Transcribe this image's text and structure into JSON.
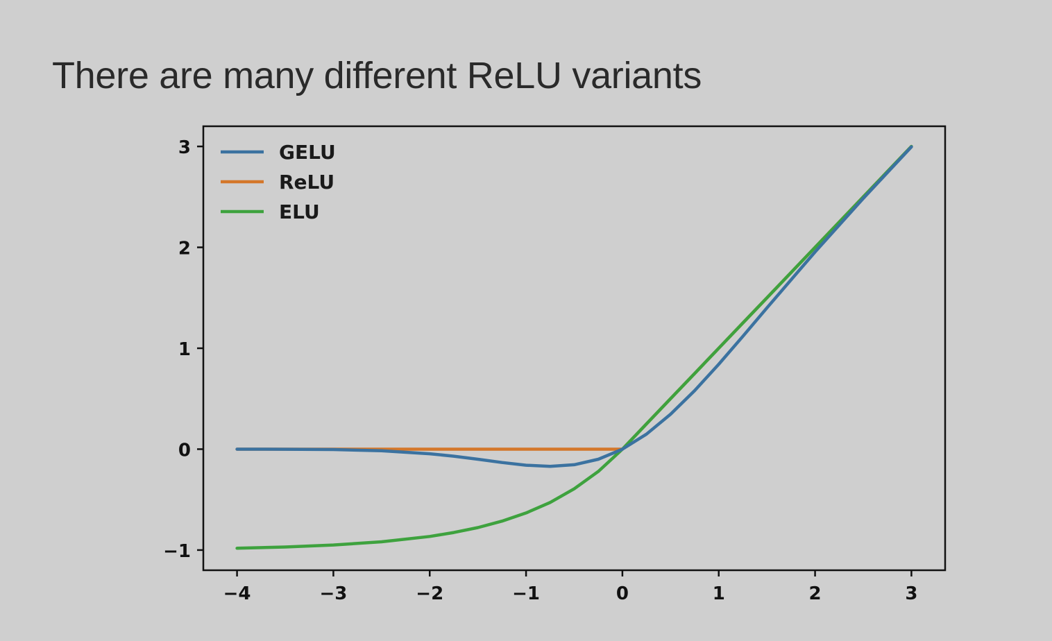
{
  "slide": {
    "title": "There are many different ReLU variants"
  },
  "chart_data": {
    "type": "line",
    "title": "",
    "xlabel": "",
    "ylabel": "",
    "xlim": [
      -4.35,
      3.35
    ],
    "ylim": [
      -1.2,
      3.2
    ],
    "xticks": [
      -4,
      -3,
      -2,
      -1,
      0,
      1,
      2,
      3
    ],
    "yticks": [
      -1,
      0,
      1,
      2,
      3
    ],
    "xtick_labels": [
      "−4",
      "−3",
      "−2",
      "−1",
      "0",
      "1",
      "2",
      "3"
    ],
    "ytick_labels": [
      "−1",
      "0",
      "1",
      "2",
      "3"
    ],
    "grid": false,
    "legend": "upper-left",
    "x": [
      -4,
      -3.5,
      -3,
      -2.5,
      -2,
      -1.75,
      -1.5,
      -1.25,
      -1,
      -0.75,
      -0.5,
      -0.25,
      0,
      0.25,
      0.5,
      0.75,
      1,
      1.25,
      1.5,
      2,
      2.5,
      3
    ],
    "series": [
      {
        "name": "GELU",
        "color": "#3b72a0",
        "values": [
          0.0,
          -0.001,
          -0.004,
          -0.016,
          -0.046,
          -0.07,
          -0.1,
          -0.132,
          -0.159,
          -0.17,
          -0.154,
          -0.1,
          0.0,
          0.149,
          0.346,
          0.58,
          0.841,
          1.118,
          1.4,
          1.955,
          2.485,
          2.996
        ]
      },
      {
        "name": "ReLU",
        "color": "#d4772a",
        "values": [
          0,
          0,
          0,
          0,
          0,
          0,
          0,
          0,
          0,
          0,
          0,
          0,
          0,
          0.25,
          0.5,
          0.75,
          1,
          1.25,
          1.5,
          2,
          2.5,
          3
        ]
      },
      {
        "name": "ELU",
        "color": "#3ea23e",
        "values": [
          -0.982,
          -0.97,
          -0.95,
          -0.918,
          -0.865,
          -0.826,
          -0.777,
          -0.713,
          -0.632,
          -0.528,
          -0.393,
          -0.221,
          0.0,
          0.25,
          0.5,
          0.75,
          1,
          1.25,
          1.5,
          2,
          2.5,
          3
        ]
      }
    ]
  }
}
